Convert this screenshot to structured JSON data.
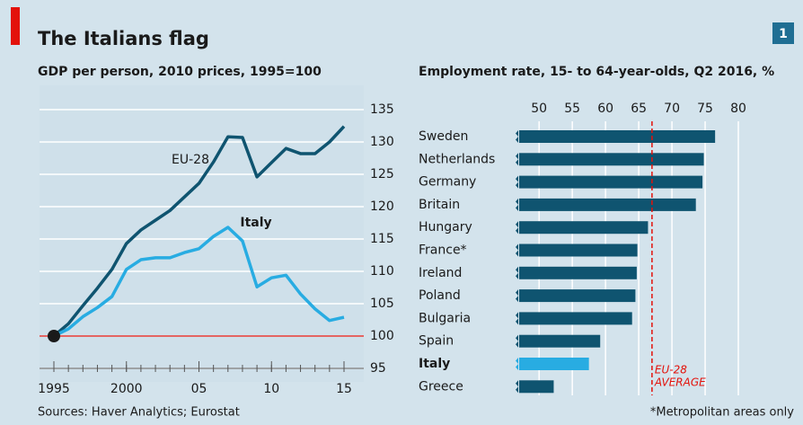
{
  "header": {
    "title": "The Italians flag",
    "badge": "1"
  },
  "footer": {
    "source": "Sources: Haver Analytics; Eurostat",
    "note": "*Metropolitan areas only"
  },
  "chart_data": [
    {
      "type": "line",
      "title": "GDP per person, 2010 prices, 1995=100",
      "x": [
        1995,
        1996,
        1997,
        1998,
        1999,
        2000,
        2001,
        2002,
        2003,
        2004,
        2005,
        2006,
        2007,
        2008,
        2009,
        2010,
        2011,
        2012,
        2013,
        2014,
        2015
      ],
      "series": [
        {
          "name": "EU-28",
          "color": "#0f5470",
          "values": [
            100,
            101.9,
            104.7,
            107.4,
            110.3,
            114.3,
            116.4,
            117.9,
            119.4,
            121.5,
            123.6,
            126.9,
            130.8,
            130.7,
            124.6,
            126.8,
            129,
            128.2,
            128.2,
            130,
            132.4
          ]
        },
        {
          "name": "Italy",
          "color": "#28ace2",
          "values": [
            100,
            101.1,
            103,
            104.4,
            106.1,
            110.3,
            111.8,
            112.1,
            112.1,
            112.9,
            113.5,
            115.4,
            116.8,
            114.7,
            107.6,
            109,
            109.4,
            106.5,
            104.2,
            102.4,
            102.9
          ]
        }
      ],
      "xlim": [
        1995,
        2015
      ],
      "xticks": [
        {
          "value": 1995,
          "label": "1995"
        },
        2000,
        {
          "value": 2005,
          "label": "05"
        },
        {
          "value": 2010,
          "label": "10"
        },
        {
          "value": 2015,
          "label": "15"
        }
      ],
      "ylim": [
        95,
        135
      ],
      "yticks": [
        95,
        100,
        105,
        110,
        115,
        120,
        125,
        130,
        135
      ],
      "baseline": 100,
      "baseline_color": "#e3120b",
      "grid": true
    },
    {
      "type": "hbar",
      "title": "Employment rate, 15- to 64-year-olds, Q2 2016, %",
      "categories": [
        "Sweden",
        "Netherlands",
        "Germany",
        "Britain",
        "Hungary",
        "France*",
        "Ireland",
        "Poland",
        "Bulgaria",
        "Spain",
        "Italy",
        "Greece"
      ],
      "values": [
        76.5,
        74.8,
        74.6,
        73.6,
        66.4,
        64.8,
        64.7,
        64.5,
        64,
        59.2,
        57.5,
        52.2
      ],
      "colors": [
        "#0f5470",
        "#0f5470",
        "#0f5470",
        "#0f5470",
        "#0f5470",
        "#0f5470",
        "#0f5470",
        "#0f5470",
        "#0f5470",
        "#0f5470",
        "#28ace2",
        "#0f5470"
      ],
      "highlight": "Italy",
      "xlim": [
        47,
        85
      ],
      "xticks": [
        50,
        55,
        60,
        65,
        70,
        75,
        80
      ],
      "grid": true,
      "reference": {
        "value": 67,
        "label": [
          "EU-28",
          "AVERAGE"
        ],
        "color": "#e3120b"
      }
    }
  ]
}
